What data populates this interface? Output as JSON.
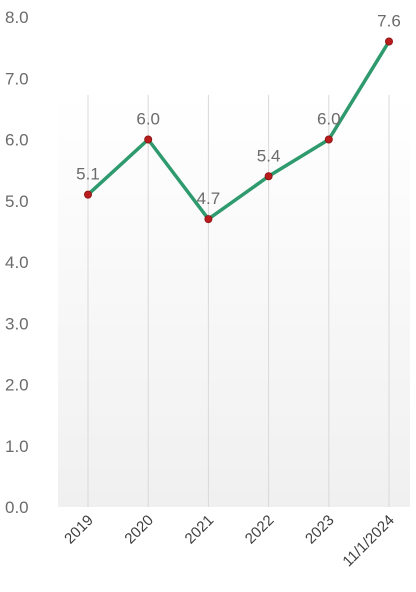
{
  "chart_data": {
    "type": "line",
    "categories": [
      "2019",
      "2020",
      "2021",
      "2022",
      "2023",
      "11/1/2024"
    ],
    "series": [
      {
        "values": [
          5.1,
          6.0,
          4.7,
          5.4,
          6.0,
          7.6
        ]
      }
    ],
    "data_labels": [
      "5.1",
      "6.0",
      "4.7",
      "5.4",
      "6.0",
      "7.6"
    ],
    "y_ticks": [
      "0.0",
      "1.0",
      "2.0",
      "3.0",
      "4.0",
      "5.0",
      "6.0",
      "7.0",
      "8.0"
    ],
    "ylim": [
      0,
      8
    ],
    "grid": "vertical",
    "legend": "none",
    "colors": {
      "line": "#2e9a6e",
      "marker": "#b81c1c",
      "grid": "#d9d9d9",
      "text": "#6b6b6b"
    }
  }
}
